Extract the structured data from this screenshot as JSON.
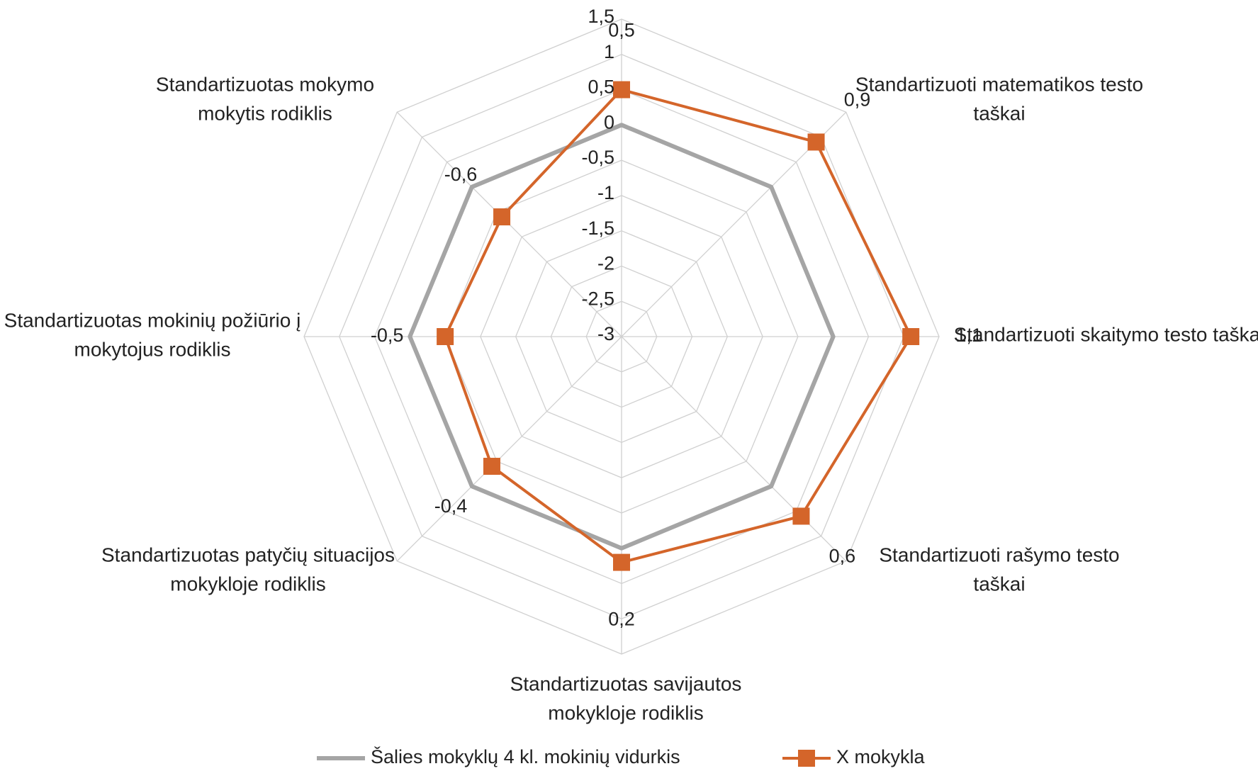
{
  "chart_data": {
    "type": "radar",
    "categories": [
      null,
      "Standartizuoti matematikos testo taškai",
      "Standartizuoti skaitymo testo taškai",
      "Standartizuoti rašymo testo taškai",
      "Standartizuotas savijautos mokykloje rodiklis",
      "Standartizuotas patyčių situacijos mokykloje rodiklis",
      "Standartizuotas mokinių požiūrio į mokytojus rodiklis",
      "Standartizuotas mokymo mokytis rodiklis"
    ],
    "series": [
      {
        "name": "Šalies mokyklų 4 kl. mokinių vidurkis",
        "color": "#a5a5a5",
        "values": [
          0,
          0,
          0,
          0,
          0,
          0,
          0,
          0
        ]
      },
      {
        "name": "X mokykla",
        "color": "#d4652a",
        "marker": "square",
        "values": [
          0.5,
          0.9,
          1.1,
          0.6,
          0.2,
          -0.4,
          -0.5,
          -0.6
        ],
        "value_labels": [
          "0,5",
          "0,9",
          "1,1",
          "0,6",
          "0,2",
          "-0,4",
          "-0,5",
          "-0,6"
        ]
      }
    ],
    "ylim": [
      -3,
      1.5
    ],
    "yticks": [
      {
        "value": -3,
        "label": "-3"
      },
      {
        "value": -2.5,
        "label": "-2,5"
      },
      {
        "value": -2,
        "label": "-2"
      },
      {
        "value": -1.5,
        "label": "-1,5"
      },
      {
        "value": -1,
        "label": "-1"
      },
      {
        "value": -0.5,
        "label": "-0,5"
      },
      {
        "value": 0,
        "label": "0"
      },
      {
        "value": 0.5,
        "label": "0,5"
      },
      {
        "value": 1,
        "label": "1"
      },
      {
        "value": 1.5,
        "label": "1,5"
      }
    ],
    "grid": true,
    "legend": "bottom"
  }
}
